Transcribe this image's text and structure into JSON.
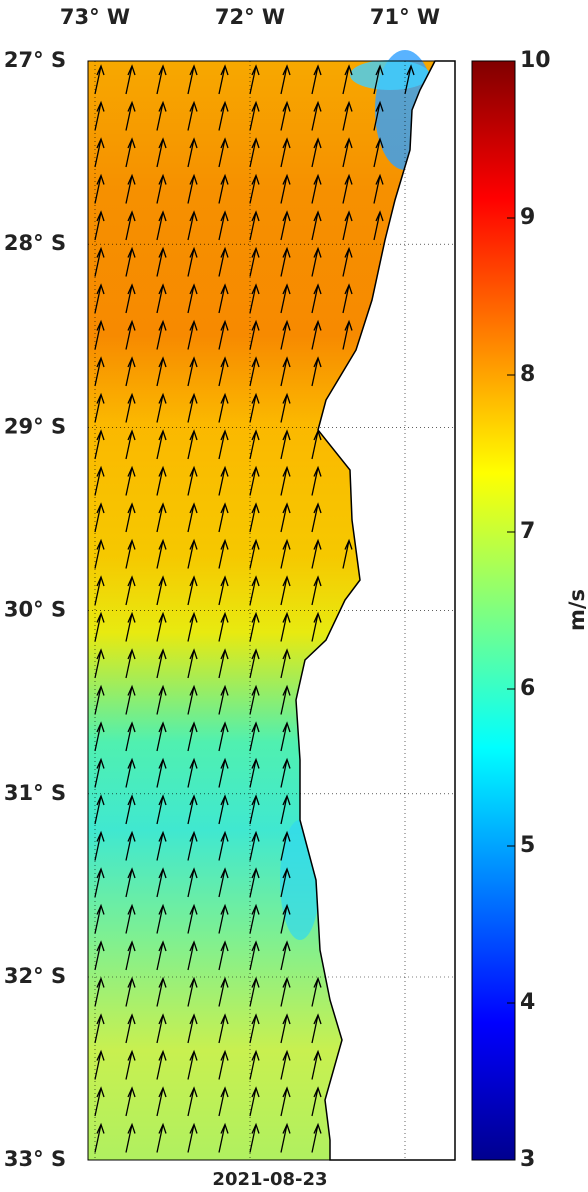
{
  "map": {
    "lon_ticks": [
      {
        "value": -73,
        "label": "73° W"
      },
      {
        "value": -72,
        "label": "72° W"
      },
      {
        "value": -71,
        "label": "71° W"
      }
    ],
    "lat_ticks": [
      {
        "value": -27,
        "label": "27° S"
      },
      {
        "value": -28,
        "label": "28° S"
      },
      {
        "value": -29,
        "label": "29° S"
      },
      {
        "value": -30,
        "label": "30° S"
      },
      {
        "value": -31,
        "label": "31° S"
      },
      {
        "value": -32,
        "label": "32° S"
      },
      {
        "value": -33,
        "label": "33° S"
      }
    ],
    "date": "2021-08-23"
  },
  "colorbar": {
    "lim": [
      3,
      10
    ],
    "ticks": [
      3,
      4,
      5,
      6,
      7,
      8,
      9,
      10
    ],
    "label": "m/s"
  }
}
